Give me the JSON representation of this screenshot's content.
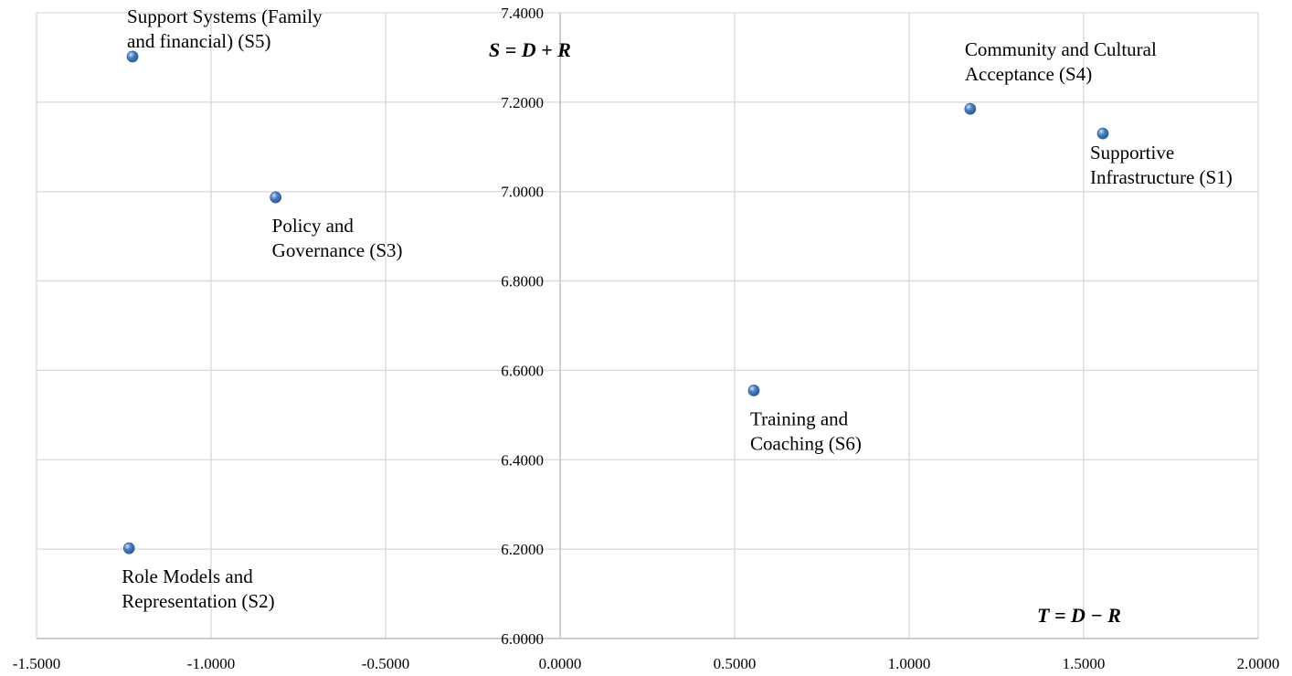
{
  "chart_data": {
    "type": "scatter",
    "title": "",
    "xlabel": "T = D − R",
    "ylabel": "S = D + R",
    "xlim": [
      -1.5,
      2.0
    ],
    "ylim": [
      6.0,
      7.4
    ],
    "x_ticks": [
      "-1.5000",
      "-1.0000",
      "-0.5000",
      "0.0000",
      "0.5000",
      "1.0000",
      "1.5000",
      "2.0000"
    ],
    "y_ticks": [
      "6.0000",
      "6.2000",
      "6.4000",
      "6.6000",
      "6.8000",
      "7.0000",
      "7.2000",
      "7.4000"
    ],
    "grid": true,
    "marker_color": "#4a7fc1",
    "points": [
      {
        "label_lines": [
          "Supportive",
          "Infrastructure (S1)"
        ],
        "x": 1.555,
        "y": 7.13
      },
      {
        "label_lines": [
          "Role Models and",
          "Representation (S2)"
        ],
        "x": -1.235,
        "y": 6.202
      },
      {
        "label_lines": [
          "Policy and",
          "Governance (S3)"
        ],
        "x": -0.815,
        "y": 6.987
      },
      {
        "label_lines": [
          "Community and Cultural",
          "Acceptance (S4)"
        ],
        "x": 1.175,
        "y": 7.185
      },
      {
        "label_lines": [
          "Support Systems (Family",
          "and financial) (S5)"
        ],
        "x": -1.225,
        "y": 7.302
      },
      {
        "label_lines": [
          "Training and",
          "Coaching (S6)"
        ],
        "x": 0.555,
        "y": 6.555
      }
    ]
  }
}
